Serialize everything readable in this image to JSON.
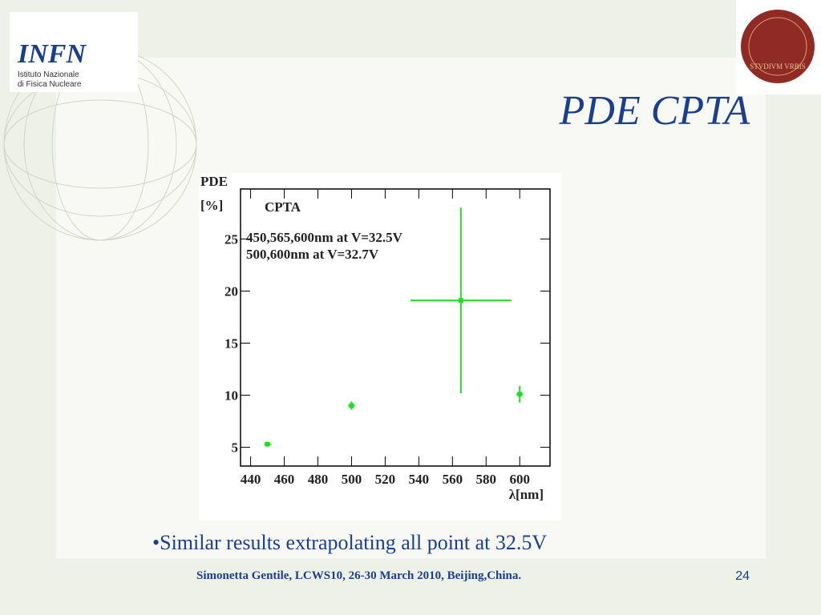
{
  "slide": {
    "title": "PDE CPTA",
    "bullet": "•Similar results  extrapolating  all point at  32.5V",
    "footer": "Simonetta Gentile,  LCWS10, 26-30 March 2010, Beijing,China.",
    "page": "24",
    "logo_left": [
      "INFN",
      "Istituto Nazionale",
      "di Fisica Nucleare"
    ],
    "logo_right": "STVDIVM VRBIS"
  },
  "chart_data": {
    "type": "scatter",
    "ylabel": [
      "PDE",
      "[%]"
    ],
    "xlabel": "λ[nm]",
    "annotations": [
      "450,565,600nm  at V=32.5V",
      "500,600nm  at V=32.7V"
    ],
    "series": [
      {
        "name": "CPTA",
        "color": "#22dd22",
        "x": [
          450,
          500,
          565,
          600
        ],
        "values": [
          5.3,
          9.0,
          19.1,
          10.1
        ],
        "xerr": [
          2,
          2,
          30,
          2
        ],
        "yerr": [
          0.2,
          0.4,
          8.9,
          0.8
        ]
      }
    ],
    "xlim": [
      434,
      618
    ],
    "ylim": [
      3.2,
      29.8
    ],
    "xticks": [
      440,
      460,
      480,
      500,
      520,
      540,
      560,
      580,
      600
    ],
    "yticks": [
      5,
      10,
      15,
      20,
      25
    ]
  }
}
